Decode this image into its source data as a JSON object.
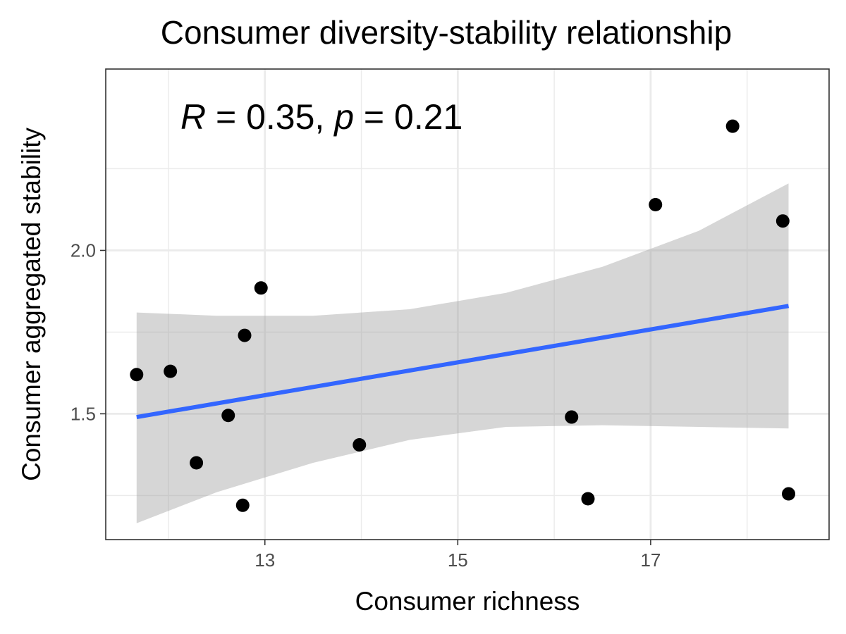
{
  "chart_data": {
    "type": "scatter",
    "title": "Consumer diversity-stability relationship",
    "xlabel": "Consumer richness",
    "ylabel": "Consumer aggregated stability",
    "xlim": [
      11.35,
      18.85
    ],
    "ylim": [
      1.115,
      2.555
    ],
    "x_ticks": [
      13,
      15,
      17
    ],
    "x_tick_labels": [
      "13",
      "15",
      "17"
    ],
    "x_minor_gridlines": [
      12,
      14,
      16,
      18
    ],
    "y_ticks": [
      1.5,
      2.0
    ],
    "y_tick_labels": [
      "1.5",
      "2.0"
    ],
    "y_minor_gridlines": [
      1.25,
      1.75,
      2.25
    ],
    "grid": true,
    "legend": "none",
    "annotation": {
      "r_label": "R",
      "r_value": "0.35",
      "p_label": "p",
      "p_value": "0.21"
    },
    "points": [
      {
        "x": 11.67,
        "y": 1.62
      },
      {
        "x": 12.02,
        "y": 1.63
      },
      {
        "x": 12.29,
        "y": 1.35
      },
      {
        "x": 12.62,
        "y": 1.495
      },
      {
        "x": 12.79,
        "y": 1.74
      },
      {
        "x": 12.77,
        "y": 1.22
      },
      {
        "x": 12.96,
        "y": 1.885
      },
      {
        "x": 13.98,
        "y": 1.405
      },
      {
        "x": 16.18,
        "y": 1.49
      },
      {
        "x": 16.35,
        "y": 1.24
      },
      {
        "x": 17.05,
        "y": 2.14
      },
      {
        "x": 17.85,
        "y": 2.38
      },
      {
        "x": 18.37,
        "y": 2.09
      },
      {
        "x": 18.43,
        "y": 1.255
      }
    ],
    "fit": {
      "x": [
        11.67,
        18.43
      ],
      "y": [
        1.49,
        1.83
      ],
      "color": "#3366FF",
      "ci_upper": [
        [
          11.67,
          1.81
        ],
        [
          12.5,
          1.8
        ],
        [
          13.5,
          1.8
        ],
        [
          14.5,
          1.82
        ],
        [
          15.5,
          1.87
        ],
        [
          16.5,
          1.95
        ],
        [
          17.5,
          2.06
        ],
        [
          18.43,
          2.205
        ]
      ],
      "ci_lower": [
        [
          11.67,
          1.165
        ],
        [
          12.5,
          1.26
        ],
        [
          13.5,
          1.35
        ],
        [
          14.5,
          1.42
        ],
        [
          15.5,
          1.46
        ],
        [
          16.5,
          1.465
        ],
        [
          17.5,
          1.46
        ],
        [
          18.43,
          1.455
        ]
      ],
      "ci_color": "#999999"
    },
    "point_color": "#000000"
  }
}
